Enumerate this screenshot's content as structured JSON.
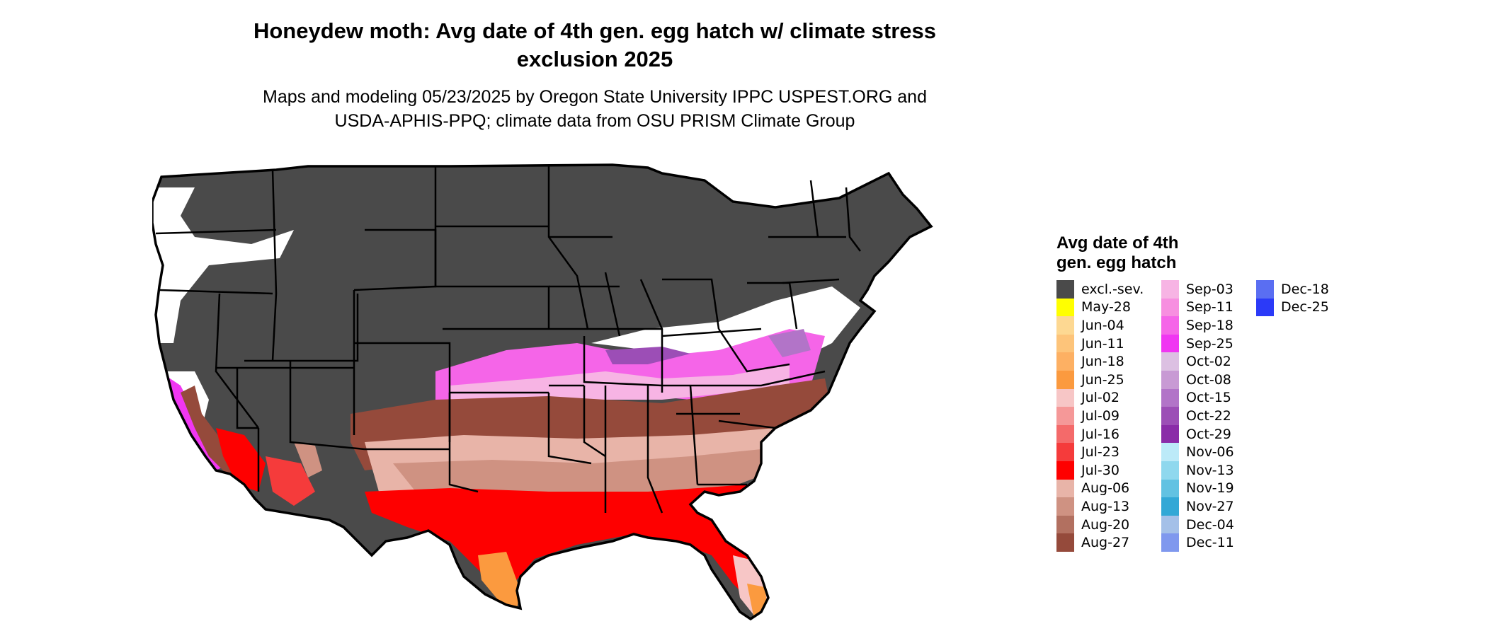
{
  "title_lines": [
    "Honeydew moth: Avg date of 4th gen. egg hatch w/ climate stress",
    "exclusion 2025"
  ],
  "subtitle_lines": [
    "Maps and modeling 05/23/2025 by Oregon State University IPPC USPEST.ORG and",
    "USDA-APHIS-PPQ; climate data from OSU PRISM Climate Group"
  ],
  "legend": {
    "title_lines": [
      "Avg date of 4th",
      "gen. egg hatch"
    ],
    "items": [
      {
        "label": "excl.-sev.",
        "color": "#4a4a4a"
      },
      {
        "label": "May-28",
        "color": "#ffff00"
      },
      {
        "label": "Jun-04",
        "color": "#fdd892"
      },
      {
        "label": "Jun-11",
        "color": "#fdc47a"
      },
      {
        "label": "Jun-18",
        "color": "#fdb063"
      },
      {
        "label": "Jun-25",
        "color": "#fb9a3f"
      },
      {
        "label": "Jul-02",
        "color": "#f7c6c6"
      },
      {
        "label": "Jul-09",
        "color": "#f59898"
      },
      {
        "label": "Jul-16",
        "color": "#f46a6a"
      },
      {
        "label": "Jul-23",
        "color": "#f53b3b"
      },
      {
        "label": "Jul-30",
        "color": "#fe0000"
      },
      {
        "label": "Aug-06",
        "color": "#e8b4a8"
      },
      {
        "label": "Aug-13",
        "color": "#cf9282"
      },
      {
        "label": "Aug-20",
        "color": "#b27060"
      },
      {
        "label": "Aug-27",
        "color": "#954a3b"
      },
      {
        "label": "Sep-03",
        "color": "#f7b4e4"
      },
      {
        "label": "Sep-11",
        "color": "#f78fe0"
      },
      {
        "label": "Sep-18",
        "color": "#f565e8"
      },
      {
        "label": "Sep-25",
        "color": "#f036f2"
      },
      {
        "label": "Oct-02",
        "color": "#dcc0e2"
      },
      {
        "label": "Oct-08",
        "color": "#c89ad4"
      },
      {
        "label": "Oct-15",
        "color": "#b274c8"
      },
      {
        "label": "Oct-22",
        "color": "#9c4eb6"
      },
      {
        "label": "Oct-29",
        "color": "#8a2ca8"
      },
      {
        "label": "Nov-06",
        "color": "#bceaf8"
      },
      {
        "label": "Nov-13",
        "color": "#8fd8ee"
      },
      {
        "label": "Nov-19",
        "color": "#62c2e2"
      },
      {
        "label": "Nov-27",
        "color": "#33a8d6"
      },
      {
        "label": "Dec-04",
        "color": "#a4c0e8"
      },
      {
        "label": "Dec-11",
        "color": "#7f98ee"
      },
      {
        "label": "Dec-18",
        "color": "#5a6ef2"
      },
      {
        "label": "Dec-25",
        "color": "#2b3af8"
      }
    ]
  }
}
